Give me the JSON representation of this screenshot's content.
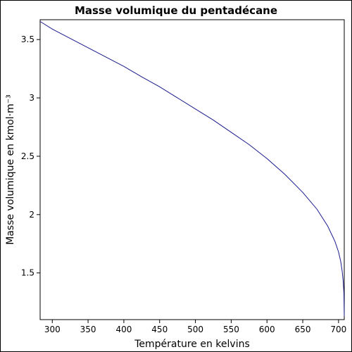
{
  "chart_data": {
    "type": "line",
    "title": "Masse volumique du pentadécane",
    "xlabel": "Température en kelvins",
    "ylabel": "Masse volumique en kmol·m⁻³",
    "xlim": [
      283,
      708
    ],
    "ylim": [
      1.1,
      3.67
    ],
    "xticks": [
      300,
      350,
      400,
      450,
      500,
      550,
      600,
      650,
      700
    ],
    "yticks": [
      1.5,
      2,
      2.5,
      3,
      3.5
    ],
    "ytick_labels": [
      "1.5",
      "2",
      "2.5",
      "3",
      "3.5"
    ],
    "grid": false,
    "color": "#1a1a8c",
    "series": [
      {
        "x": [
          283,
          300,
          325,
          350,
          375,
          400,
          425,
          450,
          475,
          500,
          525,
          550,
          575,
          600,
          625,
          650,
          670,
          685,
          695,
          700,
          703,
          705,
          706.5,
          707.5,
          708
        ],
        "y": [
          3.655,
          3.59,
          3.51,
          3.43,
          3.35,
          3.27,
          3.18,
          3.095,
          3.0,
          2.905,
          2.81,
          2.705,
          2.6,
          2.48,
          2.345,
          2.19,
          2.045,
          1.9,
          1.77,
          1.68,
          1.6,
          1.52,
          1.43,
          1.33,
          1.13
        ]
      }
    ]
  }
}
